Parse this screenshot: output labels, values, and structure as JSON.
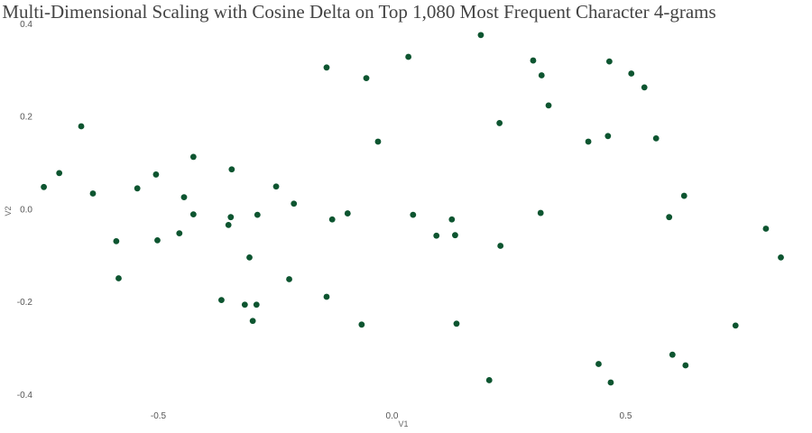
{
  "chart_data": {
    "type": "scatter",
    "title": "Multi-Dimensional Scaling with Cosine Delta on Top 1,080 Most Frequent Character 4-grams",
    "xlabel": "V1",
    "ylabel": "V2",
    "xlim": [
      -0.75,
      0.86
    ],
    "ylim": [
      -0.41,
      0.4
    ],
    "xticks": [
      -0.5,
      0.0,
      0.5
    ],
    "xtick_labels": [
      "-0.5",
      "0.0",
      "0.5"
    ],
    "yticks": [
      0.4,
      0.2,
      0.0,
      -0.2,
      -0.4
    ],
    "ytick_labels": [
      "0.4",
      "0.2",
      "0.0",
      "-0.2",
      "-0.4"
    ],
    "grid": false,
    "point_color": "#0d5530",
    "points": [
      {
        "x": -0.745,
        "y": 0.047
      },
      {
        "x": -0.712,
        "y": 0.077
      },
      {
        "x": -0.665,
        "y": 0.178
      },
      {
        "x": -0.64,
        "y": 0.033
      },
      {
        "x": -0.59,
        "y": -0.07
      },
      {
        "x": -0.585,
        "y": -0.15
      },
      {
        "x": -0.545,
        "y": 0.044
      },
      {
        "x": -0.505,
        "y": 0.074
      },
      {
        "x": -0.502,
        "y": -0.068
      },
      {
        "x": -0.455,
        "y": -0.053
      },
      {
        "x": -0.445,
        "y": 0.025
      },
      {
        "x": -0.425,
        "y": 0.112
      },
      {
        "x": -0.425,
        "y": -0.012
      },
      {
        "x": -0.365,
        "y": -0.197
      },
      {
        "x": -0.35,
        "y": -0.035
      },
      {
        "x": -0.345,
        "y": -0.018
      },
      {
        "x": -0.343,
        "y": 0.085
      },
      {
        "x": -0.315,
        "y": -0.207
      },
      {
        "x": -0.305,
        "y": -0.105
      },
      {
        "x": -0.298,
        "y": -0.242
      },
      {
        "x": -0.29,
        "y": -0.207
      },
      {
        "x": -0.288,
        "y": -0.013
      },
      {
        "x": -0.248,
        "y": 0.048
      },
      {
        "x": -0.22,
        "y": -0.152
      },
      {
        "x": -0.21,
        "y": 0.011
      },
      {
        "x": -0.14,
        "y": 0.305
      },
      {
        "x": -0.14,
        "y": -0.19
      },
      {
        "x": -0.128,
        "y": -0.023
      },
      {
        "x": -0.095,
        "y": -0.01
      },
      {
        "x": -0.065,
        "y": -0.25
      },
      {
        "x": -0.055,
        "y": 0.282
      },
      {
        "x": -0.03,
        "y": 0.145
      },
      {
        "x": 0.035,
        "y": 0.328
      },
      {
        "x": 0.045,
        "y": -0.013
      },
      {
        "x": 0.095,
        "y": -0.058
      },
      {
        "x": 0.128,
        "y": -0.023
      },
      {
        "x": 0.135,
        "y": -0.057
      },
      {
        "x": 0.138,
        "y": -0.248
      },
      {
        "x": 0.19,
        "y": 0.375
      },
      {
        "x": 0.208,
        "y": -0.37
      },
      {
        "x": 0.23,
        "y": 0.185
      },
      {
        "x": 0.232,
        "y": -0.08
      },
      {
        "x": 0.302,
        "y": 0.32
      },
      {
        "x": 0.318,
        "y": -0.009
      },
      {
        "x": 0.32,
        "y": 0.288
      },
      {
        "x": 0.335,
        "y": 0.223
      },
      {
        "x": 0.42,
        "y": 0.145
      },
      {
        "x": 0.442,
        "y": -0.335
      },
      {
        "x": 0.462,
        "y": 0.157
      },
      {
        "x": 0.465,
        "y": 0.318
      },
      {
        "x": 0.468,
        "y": -0.375
      },
      {
        "x": 0.512,
        "y": 0.292
      },
      {
        "x": 0.54,
        "y": 0.262
      },
      {
        "x": 0.565,
        "y": 0.152
      },
      {
        "x": 0.593,
        "y": -0.018
      },
      {
        "x": 0.6,
        "y": -0.315
      },
      {
        "x": 0.625,
        "y": 0.028
      },
      {
        "x": 0.628,
        "y": -0.338
      },
      {
        "x": 0.735,
        "y": -0.252
      },
      {
        "x": 0.8,
        "y": -0.043
      },
      {
        "x": 0.832,
        "y": -0.105
      }
    ]
  }
}
